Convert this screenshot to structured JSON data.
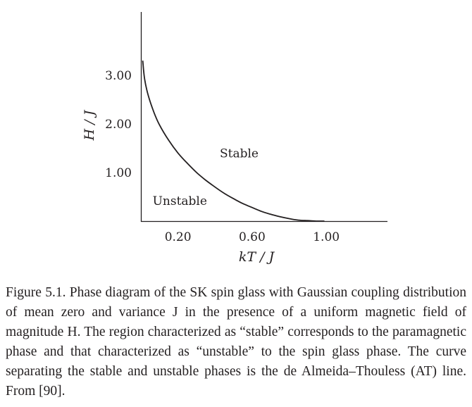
{
  "chart_data": {
    "type": "line",
    "title": "",
    "xlabel": "kT / J",
    "ylabel": "H / J",
    "x_ticks": [
      {
        "value": 0.2,
        "label": "0.20"
      },
      {
        "value": 0.6,
        "label": "0.60"
      },
      {
        "value": 1.0,
        "label": "1.00"
      }
    ],
    "y_ticks": [
      {
        "value": 1.0,
        "label": "1.00"
      },
      {
        "value": 2.0,
        "label": "2.00"
      },
      {
        "value": 3.0,
        "label": "3.00"
      }
    ],
    "xlim": [
      0.0,
      1.33
    ],
    "ylim": [
      0.0,
      4.3
    ],
    "grid": false,
    "series": [
      {
        "x": [
          0.01,
          0.02,
          0.04,
          0.07,
          0.1,
          0.15,
          0.2,
          0.25,
          0.3,
          0.35,
          0.4,
          0.45,
          0.5,
          0.55,
          0.6,
          0.65,
          0.7,
          0.75,
          0.8,
          0.85,
          0.9,
          0.95,
          0.99
        ],
        "y": [
          3.3,
          2.92,
          2.58,
          2.24,
          1.98,
          1.66,
          1.4,
          1.19,
          1.0,
          0.84,
          0.7,
          0.57,
          0.46,
          0.36,
          0.28,
          0.2,
          0.14,
          0.09,
          0.05,
          0.02,
          0.01,
          0.0,
          0.0
        ]
      }
    ],
    "annotations": [
      {
        "text": "Stable",
        "x": 0.53,
        "y": 1.4
      },
      {
        "text": "Unstable",
        "x": 0.21,
        "y": 0.42
      }
    ]
  },
  "caption": "Figure 5.1. Phase diagram of the SK spin glass with Gaussian coupling distribution of mean zero and variance J in the presence of a uniform magnetic field of magnitude H. The region characterized as “stable” corresponds to the paramagnetic phase and that characterized as “unstable” to the spin glass phase. The curve separating the stable and unstable phases is the de Almeida–Thouless (AT) line. From [90]."
}
